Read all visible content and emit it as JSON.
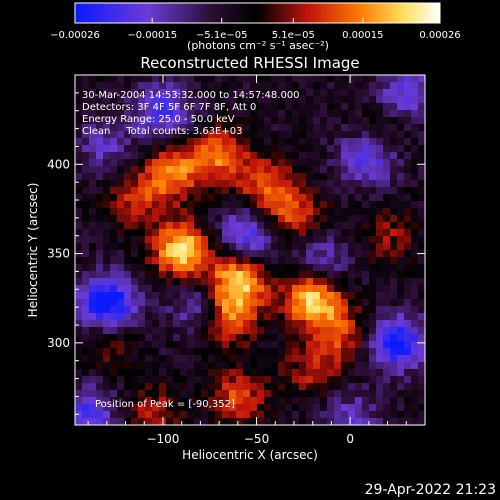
{
  "chart_data": {
    "type": "heatmap",
    "title": "Reconstructed RHESSI Image",
    "xlabel": "Heliocentric X (arcsec)",
    "ylabel": "Heliocentric Y (arcsec)",
    "xlim": [
      -147,
      40
    ],
    "ylim": [
      254,
      450
    ],
    "x_ticks": [
      -100,
      -50,
      0
    ],
    "x_tick_labels": [
      "−100",
      "−50",
      "0"
    ],
    "y_ticks": [
      300,
      350,
      400
    ],
    "y_tick_labels": [
      "300",
      "350",
      "400"
    ],
    "colorbar": {
      "range": [
        -0.00026,
        0.00026
      ],
      "ticks": [
        -0.00026,
        -0.00015,
        -5.1e-05,
        5.1e-05,
        0.00015,
        0.00026
      ],
      "tick_labels": [
        "−0.00026",
        "−0.00015",
        "−5.1e−05",
        "5.1e−05",
        "0.00015",
        "0.00026"
      ],
      "unit": "(photons cm⁻² s⁻¹ asec⁻²)",
      "colors": [
        "#0a1bff",
        "#6b3bd6",
        "#2a0c30",
        "#000000",
        "#c2140a",
        "#ff7a00",
        "#ffe060",
        "#ffffff"
      ]
    },
    "info": {
      "time_range": "30-Mar-2004 14:53:32.000 to 14:57:48.000",
      "detectors": "Detectors: 3F 4F 5F 6F 7F 8F, Att 0",
      "energy": "Energy Range: 25.0 - 50.0 keV",
      "method": "Clean     Total counts: 3.63E+03"
    },
    "peak_label": "Position of Peak = [-90,352]",
    "hotspots": [
      {
        "x": -60,
        "y": 336,
        "v": 0.00024
      },
      {
        "x": -20,
        "y": 325,
        "v": 0.00026
      },
      {
        "x": -90,
        "y": 352,
        "v": 0.00026
      },
      {
        "x": -95,
        "y": 395,
        "v": 0.00018
      },
      {
        "x": -70,
        "y": 405,
        "v": 0.00017
      },
      {
        "x": -45,
        "y": 388,
        "v": 0.00015
      },
      {
        "x": -30,
        "y": 372,
        "v": 0.00014
      },
      {
        "x": -65,
        "y": 315,
        "v": 0.0002
      },
      {
        "x": -5,
        "y": 305,
        "v": 0.00013
      },
      {
        "x": -115,
        "y": 380,
        "v": 0.00012
      },
      {
        "x": -60,
        "y": 270,
        "v": 0.00014
      },
      {
        "x": -20,
        "y": 285,
        "v": 0.00011
      },
      {
        "x": -105,
        "y": 262,
        "v": 0.0001
      },
      {
        "x": 15,
        "y": 415,
        "v": 0.0001
      },
      {
        "x": 20,
        "y": 360,
        "v": 9e-05
      },
      {
        "x": -130,
        "y": 300,
        "v": 8e-05
      }
    ],
    "coldspots": [
      {
        "x": -130,
        "y": 322,
        "v": -0.00026
      },
      {
        "x": -55,
        "y": 360,
        "v": -0.00018
      },
      {
        "x": 10,
        "y": 405,
        "v": -0.0002
      },
      {
        "x": 25,
        "y": 300,
        "v": -0.00022
      },
      {
        "x": -100,
        "y": 430,
        "v": -0.00015
      },
      {
        "x": -140,
        "y": 260,
        "v": -0.00016
      },
      {
        "x": -15,
        "y": 345,
        "v": -0.00012
      },
      {
        "x": -80,
        "y": 320,
        "v": -0.00013
      },
      {
        "x": 30,
        "y": 440,
        "v": -0.00014
      },
      {
        "x": -130,
        "y": 410,
        "v": -0.0001
      },
      {
        "x": 0,
        "y": 258,
        "v": -0.00011
      }
    ]
  },
  "footer": {
    "timestamp": "29-Apr-2022 21:23"
  }
}
